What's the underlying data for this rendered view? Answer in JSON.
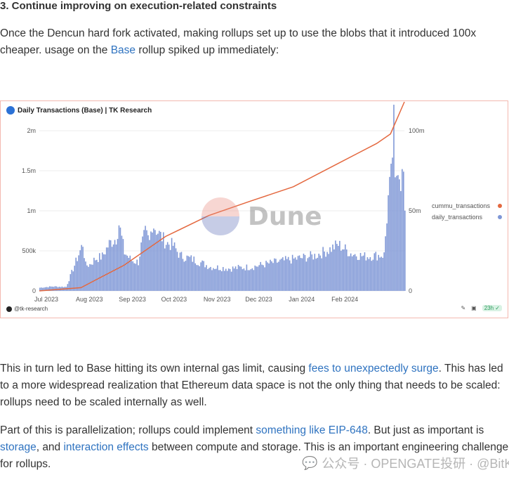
{
  "article": {
    "heading": "3. Continue improving on execution-related constraints",
    "p1_before": "Once the Dencun hard fork activated, making rollups set up to use the blobs that it introduced 100x cheaper. usage on the ",
    "p1_link": "Base",
    "p1_after": " rollup spiked up immediately:",
    "p2_before": "This in turn led to Base hitting its own internal gas limit, causing ",
    "p2_link": "fees to unexpectedly surge",
    "p2_after": ". This has led to a more widespread realization that Ethereum data space is not the only thing that needs to be scaled: rollups need to be scaled internally as well.",
    "p3_a": "Part of this is parallelization; rollups could implement ",
    "p3_link1": "something like EIP-648",
    "p3_b": ". But just as important is ",
    "p3_link2": "storage",
    "p3_c": ", and ",
    "p3_link3": "interaction effects",
    "p3_d": " between compute and storage. This is an important engineering challenge for rollups."
  },
  "chart_card": {
    "title": "Daily Transactions (Base) | TK Research",
    "handle": "@tk-research",
    "badge": "23h",
    "watermark": "Dune",
    "legend": [
      {
        "label": "cummu_transactions",
        "color": "#e4683f"
      },
      {
        "label": "daily_transactions",
        "color": "#7f97d6"
      }
    ]
  },
  "chart_data": {
    "type": "bar",
    "title": "Daily Transactions (Base) | TK Research",
    "x_tick_labels": [
      "Jul 2023",
      "Aug 2023",
      "Sep 2023",
      "Oct 2023",
      "Nov 2023",
      "Dec 2023",
      "Jan 2024",
      "Feb 2024"
    ],
    "y_left_ticks": [
      "0",
      "500k",
      "1m",
      "1.5m",
      "2m"
    ],
    "y_right_ticks": [
      "0",
      "50m",
      "100m"
    ],
    "y_left_range": [
      0,
      2000000
    ],
    "y_right_range": [
      0,
      100000000
    ],
    "x_range": [
      "2023-07-01",
      "2024-03-20"
    ],
    "series": [
      {
        "name": "daily_transactions",
        "type": "bar",
        "color": "#7f97d6",
        "axis": "left",
        "points": [
          [
            "2023-07-01",
            40000
          ],
          [
            "2023-07-10",
            55000
          ],
          [
            "2023-07-20",
            50000
          ],
          [
            "2023-08-01",
            590000
          ],
          [
            "2023-08-03",
            320000
          ],
          [
            "2023-08-06",
            330000
          ],
          [
            "2023-08-10",
            400000
          ],
          [
            "2023-08-15",
            430000
          ],
          [
            "2023-08-20",
            590000
          ],
          [
            "2023-08-25",
            660000
          ],
          [
            "2023-08-27",
            840000
          ],
          [
            "2023-08-31",
            480000
          ],
          [
            "2023-09-05",
            380000
          ],
          [
            "2023-09-10",
            360000
          ],
          [
            "2023-09-12",
            560000
          ],
          [
            "2023-09-15",
            720000
          ],
          [
            "2023-09-18",
            610000
          ],
          [
            "2023-09-20",
            850000
          ],
          [
            "2023-09-25",
            710000
          ],
          [
            "2023-09-30",
            600000
          ],
          [
            "2023-10-05",
            570000
          ],
          [
            "2023-10-10",
            440000
          ],
          [
            "2023-10-20",
            390000
          ],
          [
            "2023-11-01",
            300000
          ],
          [
            "2023-11-15",
            280000
          ],
          [
            "2023-12-01",
            300000
          ],
          [
            "2023-12-15",
            350000
          ],
          [
            "2024-01-01",
            400000
          ],
          [
            "2024-01-15",
            440000
          ],
          [
            "2024-01-25",
            510000
          ],
          [
            "2024-02-01",
            580000
          ],
          [
            "2024-02-10",
            470000
          ],
          [
            "2024-02-20",
            430000
          ],
          [
            "2024-03-05",
            450000
          ],
          [
            "2024-03-08",
            1150000
          ],
          [
            "2024-03-10",
            1400000
          ],
          [
            "2024-03-12",
            2050000
          ],
          [
            "2024-03-13",
            1300000
          ],
          [
            "2024-03-15",
            1650000
          ],
          [
            "2024-03-17",
            1400000
          ],
          [
            "2024-03-19",
            1450000
          ],
          [
            "2024-03-20",
            880000
          ]
        ]
      },
      {
        "name": "cummu_transactions",
        "type": "line",
        "color": "#e4683f",
        "axis": "right",
        "points": [
          [
            "2023-07-01",
            0
          ],
          [
            "2023-07-31",
            2000000
          ],
          [
            "2023-08-31",
            16000000
          ],
          [
            "2023-09-30",
            34000000
          ],
          [
            "2023-10-31",
            47000000
          ],
          [
            "2023-11-30",
            56000000
          ],
          [
            "2023-12-31",
            65000000
          ],
          [
            "2024-01-31",
            79000000
          ],
          [
            "2024-02-29",
            92000000
          ],
          [
            "2024-03-10",
            98000000
          ],
          [
            "2024-03-20",
            118000000
          ]
        ]
      }
    ],
    "grid": true,
    "legend_position": "right"
  }
}
